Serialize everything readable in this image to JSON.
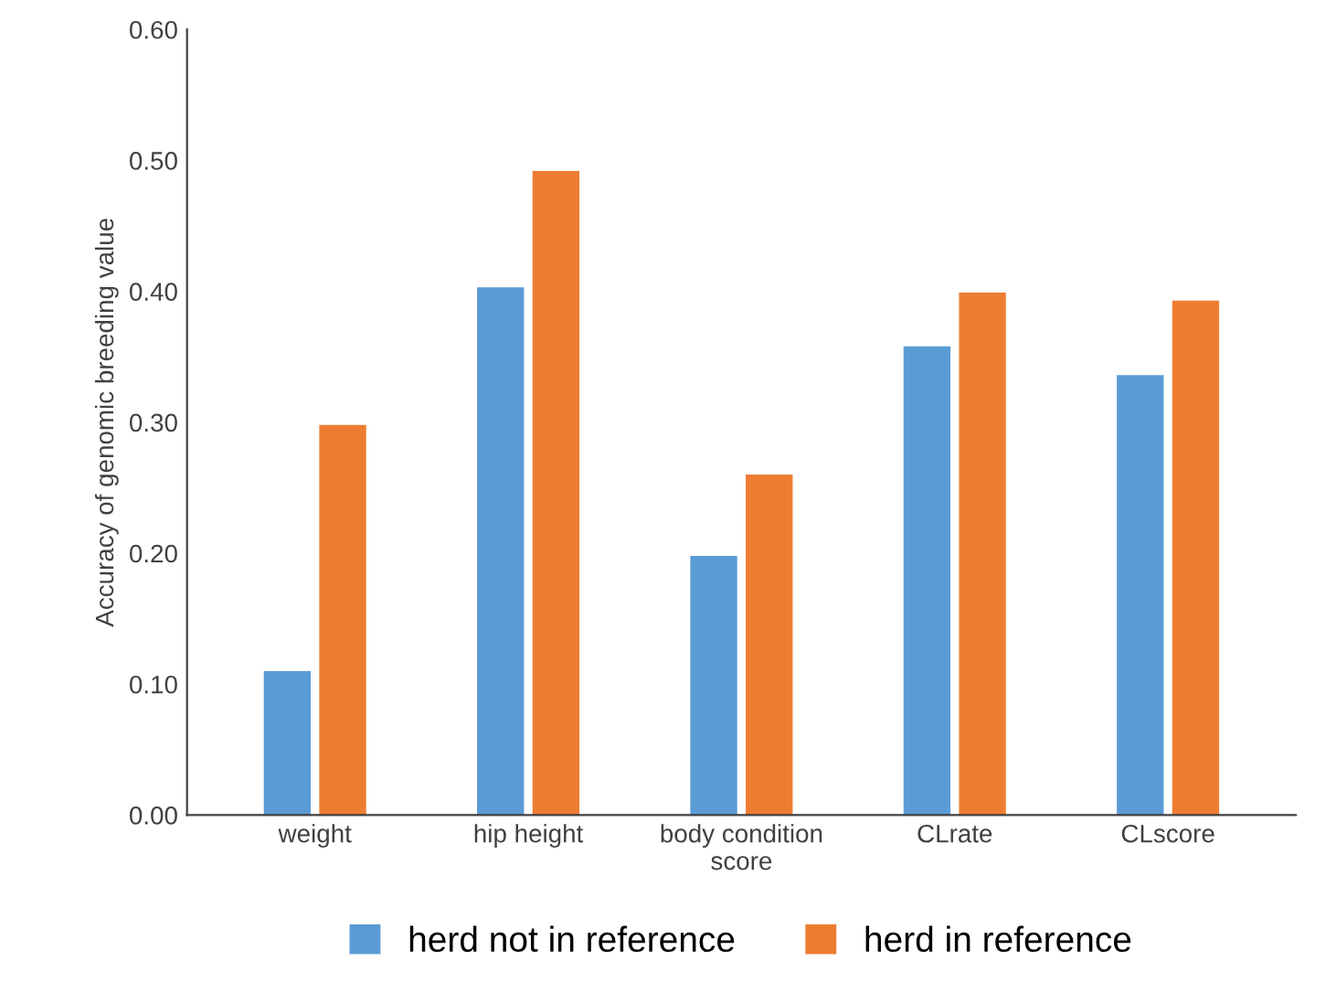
{
  "chart_data": {
    "type": "bar",
    "ylabel": "Accuracy of genomic breeding value",
    "categories": [
      "weight",
      "hip height",
      "body condition\nscore",
      "CLrate",
      "CLscore"
    ],
    "series": [
      {
        "name": "herd not in reference",
        "color": "#5b9bd5",
        "values": [
          0.11,
          0.403,
          0.198,
          0.358,
          0.336
        ]
      },
      {
        "name": "herd in reference",
        "color": "#ed7d31",
        "values": [
          0.298,
          0.492,
          0.26,
          0.399,
          0.393
        ]
      }
    ],
    "ylim": [
      0,
      0.6
    ],
    "yticks": [
      {
        "value": 0,
        "label": "0.00"
      },
      {
        "value": 0.1,
        "label": "0.10"
      },
      {
        "value": 0.2,
        "label": "0.20"
      },
      {
        "value": 0.3,
        "label": "0.30"
      },
      {
        "value": 0.4,
        "label": "0.40"
      },
      {
        "value": 0.5,
        "label": "0.50"
      },
      {
        "value": 0.6,
        "label": "0.60"
      }
    ],
    "grid": false,
    "legend": "bottom"
  }
}
